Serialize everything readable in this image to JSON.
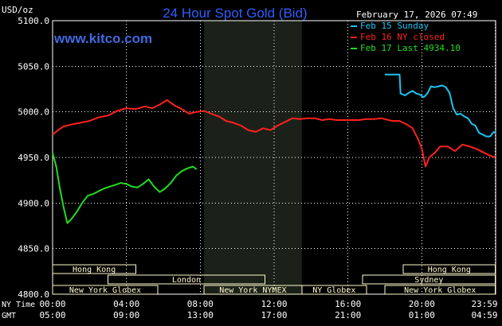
{
  "title": "24 Hour Spot Gold (Bid)",
  "datetime": "February 17, 2026 07:49",
  "watermark": "www.kitco.com",
  "colors": {
    "background": "#000000",
    "grid": "#ffffff",
    "title": "#2f5cff",
    "watermark": "#4169e1",
    "box": "#fffacd",
    "nymex_shade": "#1b2118"
  },
  "chart_data": {
    "type": "line",
    "yunit": "USD/oz",
    "ylim": [
      4800,
      5100
    ],
    "yticks": [
      "5100.0",
      "5050.0",
      "5000.0",
      "4950.0",
      "4900.0",
      "4850.0",
      "4800.0"
    ],
    "x_hours_range": [
      0,
      24
    ],
    "xaxis_rows": [
      {
        "label": "NY Time",
        "ticks": [
          "00:00",
          "04:00",
          "08:00",
          "12:00",
          "16:00",
          "20:00",
          "23:59"
        ]
      },
      {
        "label": "GMT",
        "ticks": [
          "05:00",
          "09:00",
          "13:00",
          "17:00",
          "21:00",
          "01:00",
          "04:59"
        ]
      }
    ],
    "shaded_period": {
      "label": "New York NYMEX",
      "start_hour": 8.2,
      "end_hour": 13.5
    },
    "sessions": [
      {
        "label": "Hong Kong",
        "start_hour": 0,
        "end_hour": 4.5
      },
      {
        "label": "London",
        "start_hour": 3.0,
        "end_hour": 11.5
      },
      {
        "label": "New York Globex",
        "start_hour": 0,
        "end_hour": 5.7
      },
      {
        "label": "New York NYMEX",
        "start_hour": 8.2,
        "end_hour": 13.5
      },
      {
        "label": "NY Globex",
        "start_hour": 13.5,
        "end_hour": 17.0
      },
      {
        "label": "Hong Kong",
        "start_hour": 19.0,
        "end_hour": 23.98
      },
      {
        "label": "Sydney",
        "start_hour": 16.8,
        "end_hour": 23.98
      },
      {
        "label": "New York Globex",
        "start_hour": 18.0,
        "end_hour": 23.98
      }
    ],
    "series": [
      {
        "name": "Feb 15 Sunday",
        "color": "#19c5f0",
        "x": [
          18.0,
          18.4,
          18.8,
          18.85,
          19.1,
          19.3,
          19.5,
          19.7,
          19.9,
          20.1,
          20.3,
          20.5,
          20.7,
          20.9,
          21.1,
          21.3,
          21.5,
          21.7,
          21.9,
          22.1,
          22.3,
          22.5,
          22.7,
          22.9,
          23.1,
          23.3,
          23.5,
          23.7,
          23.9,
          23.98
        ],
        "y": [
          5041,
          5041,
          5041,
          5020,
          5018,
          5021,
          5023,
          5020,
          5019,
          5016,
          5020,
          5028,
          5027,
          5028,
          5029,
          5027,
          5021,
          5004,
          4997,
          4998,
          4995,
          4993,
          4987,
          4985,
          4977,
          4975,
          4973,
          4973,
          4978,
          4977
        ]
      },
      {
        "name": "Feb 16 NY closed",
        "color": "#ff2020",
        "x": [
          0.0,
          0.3,
          0.6,
          1.0,
          1.5,
          2.0,
          2.5,
          3.0,
          3.5,
          4.0,
          4.5,
          5.0,
          5.4,
          5.8,
          6.2,
          6.6,
          7.0,
          7.4,
          7.8,
          8.2,
          8.6,
          9.0,
          9.4,
          9.8,
          10.2,
          10.6,
          11.0,
          11.4,
          11.8,
          12.2,
          12.6,
          13.0,
          13.4,
          13.8,
          14.2,
          14.6,
          15.0,
          15.4,
          15.8,
          16.2,
          16.6,
          17.0,
          17.4,
          17.8,
          18.0,
          18.4,
          18.8,
          19.2,
          19.5,
          19.8,
          20.0,
          20.2,
          20.4,
          20.7,
          21.0,
          21.4,
          21.8,
          22.2,
          22.6,
          23.0,
          23.4,
          23.7,
          23.98
        ],
        "y": [
          4975,
          4980,
          4984,
          4986,
          4988,
          4990,
          4994,
          4996,
          5001,
          5004,
          5003,
          5006,
          5004,
          5008,
          5013,
          5007,
          5003,
          4998,
          5000,
          5001,
          4998,
          4995,
          4990,
          4988,
          4985,
          4980,
          4978,
          4982,
          4980,
          4985,
          4989,
          4993,
          4992,
          4993,
          4993,
          4991,
          4992,
          4991,
          4991,
          4991,
          4991,
          4992,
          4992,
          4993,
          4992,
          4990,
          4990,
          4986,
          4982,
          4970,
          4960,
          4940,
          4950,
          4955,
          4962,
          4962,
          4957,
          4964,
          4962,
          4959,
          4955,
          4952,
          4950
        ]
      },
      {
        "name": "Feb 17 Last 4934.10",
        "color": "#22dd22",
        "x": [
          0.0,
          0.2,
          0.4,
          0.6,
          0.8,
          1.0,
          1.3,
          1.6,
          1.9,
          2.2,
          2.5,
          2.8,
          3.1,
          3.4,
          3.7,
          4.0,
          4.3,
          4.6,
          4.9,
          5.2,
          5.5,
          5.8,
          6.1,
          6.4,
          6.7,
          7.0,
          7.3,
          7.6,
          7.8
        ],
        "y": [
          4955,
          4940,
          4915,
          4895,
          4878,
          4882,
          4890,
          4900,
          4908,
          4910,
          4913,
          4916,
          4918,
          4920,
          4922,
          4921,
          4918,
          4917,
          4921,
          4926,
          4918,
          4912,
          4916,
          4922,
          4930,
          4935,
          4938,
          4940,
          4937
        ]
      }
    ]
  }
}
